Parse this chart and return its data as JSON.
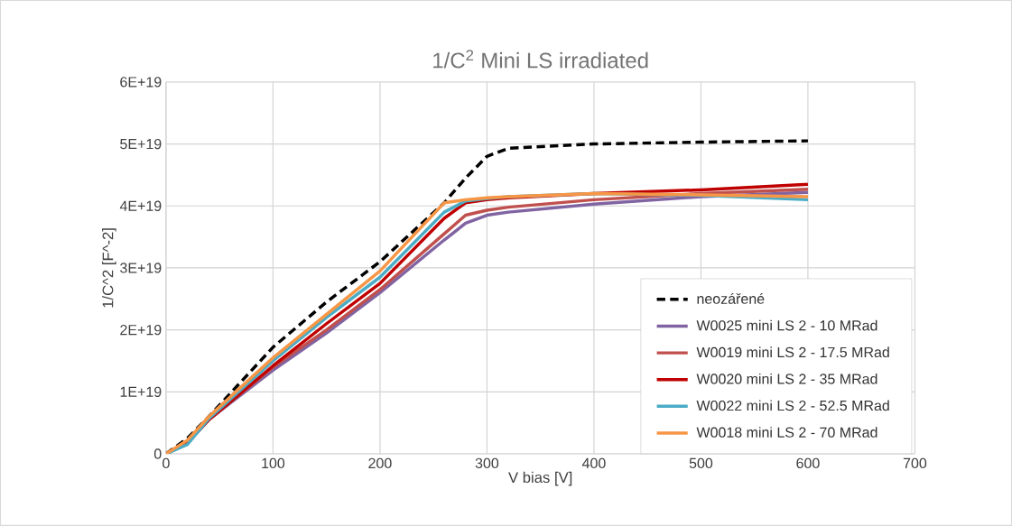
{
  "chart_data": {
    "type": "line",
    "title": "1/C$^{2}$ Mini LS irradiated",
    "xlabel": "V bias [V]",
    "ylabel": "1/C^2 [F^-2]",
    "x": [
      0,
      20,
      40,
      100,
      150,
      200,
      260,
      280,
      300,
      320,
      400,
      500,
      600
    ],
    "series": [
      {
        "name": "neozářené",
        "color": "#000000",
        "line_style": "dashed",
        "values": [
          0,
          2.5e+18,
          6e+18,
          1.72e+19,
          2.45e+19,
          3.1e+19,
          4.05e+19,
          4.45e+19,
          4.8e+19,
          4.93e+19,
          5e+19,
          5.03e+19,
          5.05e+19
        ]
      },
      {
        "name": "W0025 mini LS 2 - 10 MRad",
        "color": "#8064a2",
        "values": [
          0,
          1.8e+18,
          5.5e+18,
          1.35e+19,
          1.95e+19,
          2.6e+19,
          3.45e+19,
          3.72e+19,
          3.85e+19,
          3.9e+19,
          4.03e+19,
          4.15e+19,
          4.22e+19
        ]
      },
      {
        "name": "W0019 mini LS 2 - 17.5 MRad",
        "color": "#c0504d",
        "values": [
          0,
          1.8e+18,
          5.5e+18,
          1.4e+19,
          2e+19,
          2.65e+19,
          3.55e+19,
          3.85e+19,
          3.93e+19,
          3.98e+19,
          4.1e+19,
          4.2e+19,
          4.27e+19
        ]
      },
      {
        "name": "W0020 mini LS 2 - 35 MRad",
        "color": "#c00000",
        "values": [
          0,
          1.8e+18,
          5.5e+18,
          1.42e+19,
          2.1e+19,
          2.75e+19,
          3.8e+19,
          4.05e+19,
          4.1e+19,
          4.13e+19,
          4.2e+19,
          4.26e+19,
          4.35e+19
        ]
      },
      {
        "name": "W0022 mini LS 2 - 52.5 MRad",
        "color": "#4bacc6",
        "values": [
          0,
          1.5e+18,
          5.7e+18,
          1.5e+19,
          2.2e+19,
          2.85e+19,
          3.9e+19,
          4.08e+19,
          4.12e+19,
          4.15e+19,
          4.2e+19,
          4.17e+19,
          4.1e+19
        ]
      },
      {
        "name": "W0018 mini LS 2 - 70 MRad",
        "color": "#f79646",
        "values": [
          0,
          2.2e+18,
          6e+18,
          1.55e+19,
          2.25e+19,
          2.95e+19,
          4.05e+19,
          4.1e+19,
          4.13e+19,
          4.15e+19,
          4.2e+19,
          4.18e+19,
          4.15e+19
        ]
      }
    ],
    "xlim": [
      0,
      700
    ],
    "xticks": [
      0,
      100,
      200,
      300,
      400,
      500,
      600,
      700
    ],
    "ylim": [
      0,
      6e+19
    ],
    "yticks": [
      {
        "value": 0,
        "label": "0"
      },
      {
        "value": 1e+19,
        "label": "1E+19"
      },
      {
        "value": 2e+19,
        "label": "2E+19"
      },
      {
        "value": 3e+19,
        "label": "3E+19"
      },
      {
        "value": 4e+19,
        "label": "4E+19"
      },
      {
        "value": 5e+19,
        "label": "5E+19"
      },
      {
        "value": 6e+19,
        "label": "6E+19"
      }
    ],
    "grid": true,
    "legend": "bottom right"
  }
}
